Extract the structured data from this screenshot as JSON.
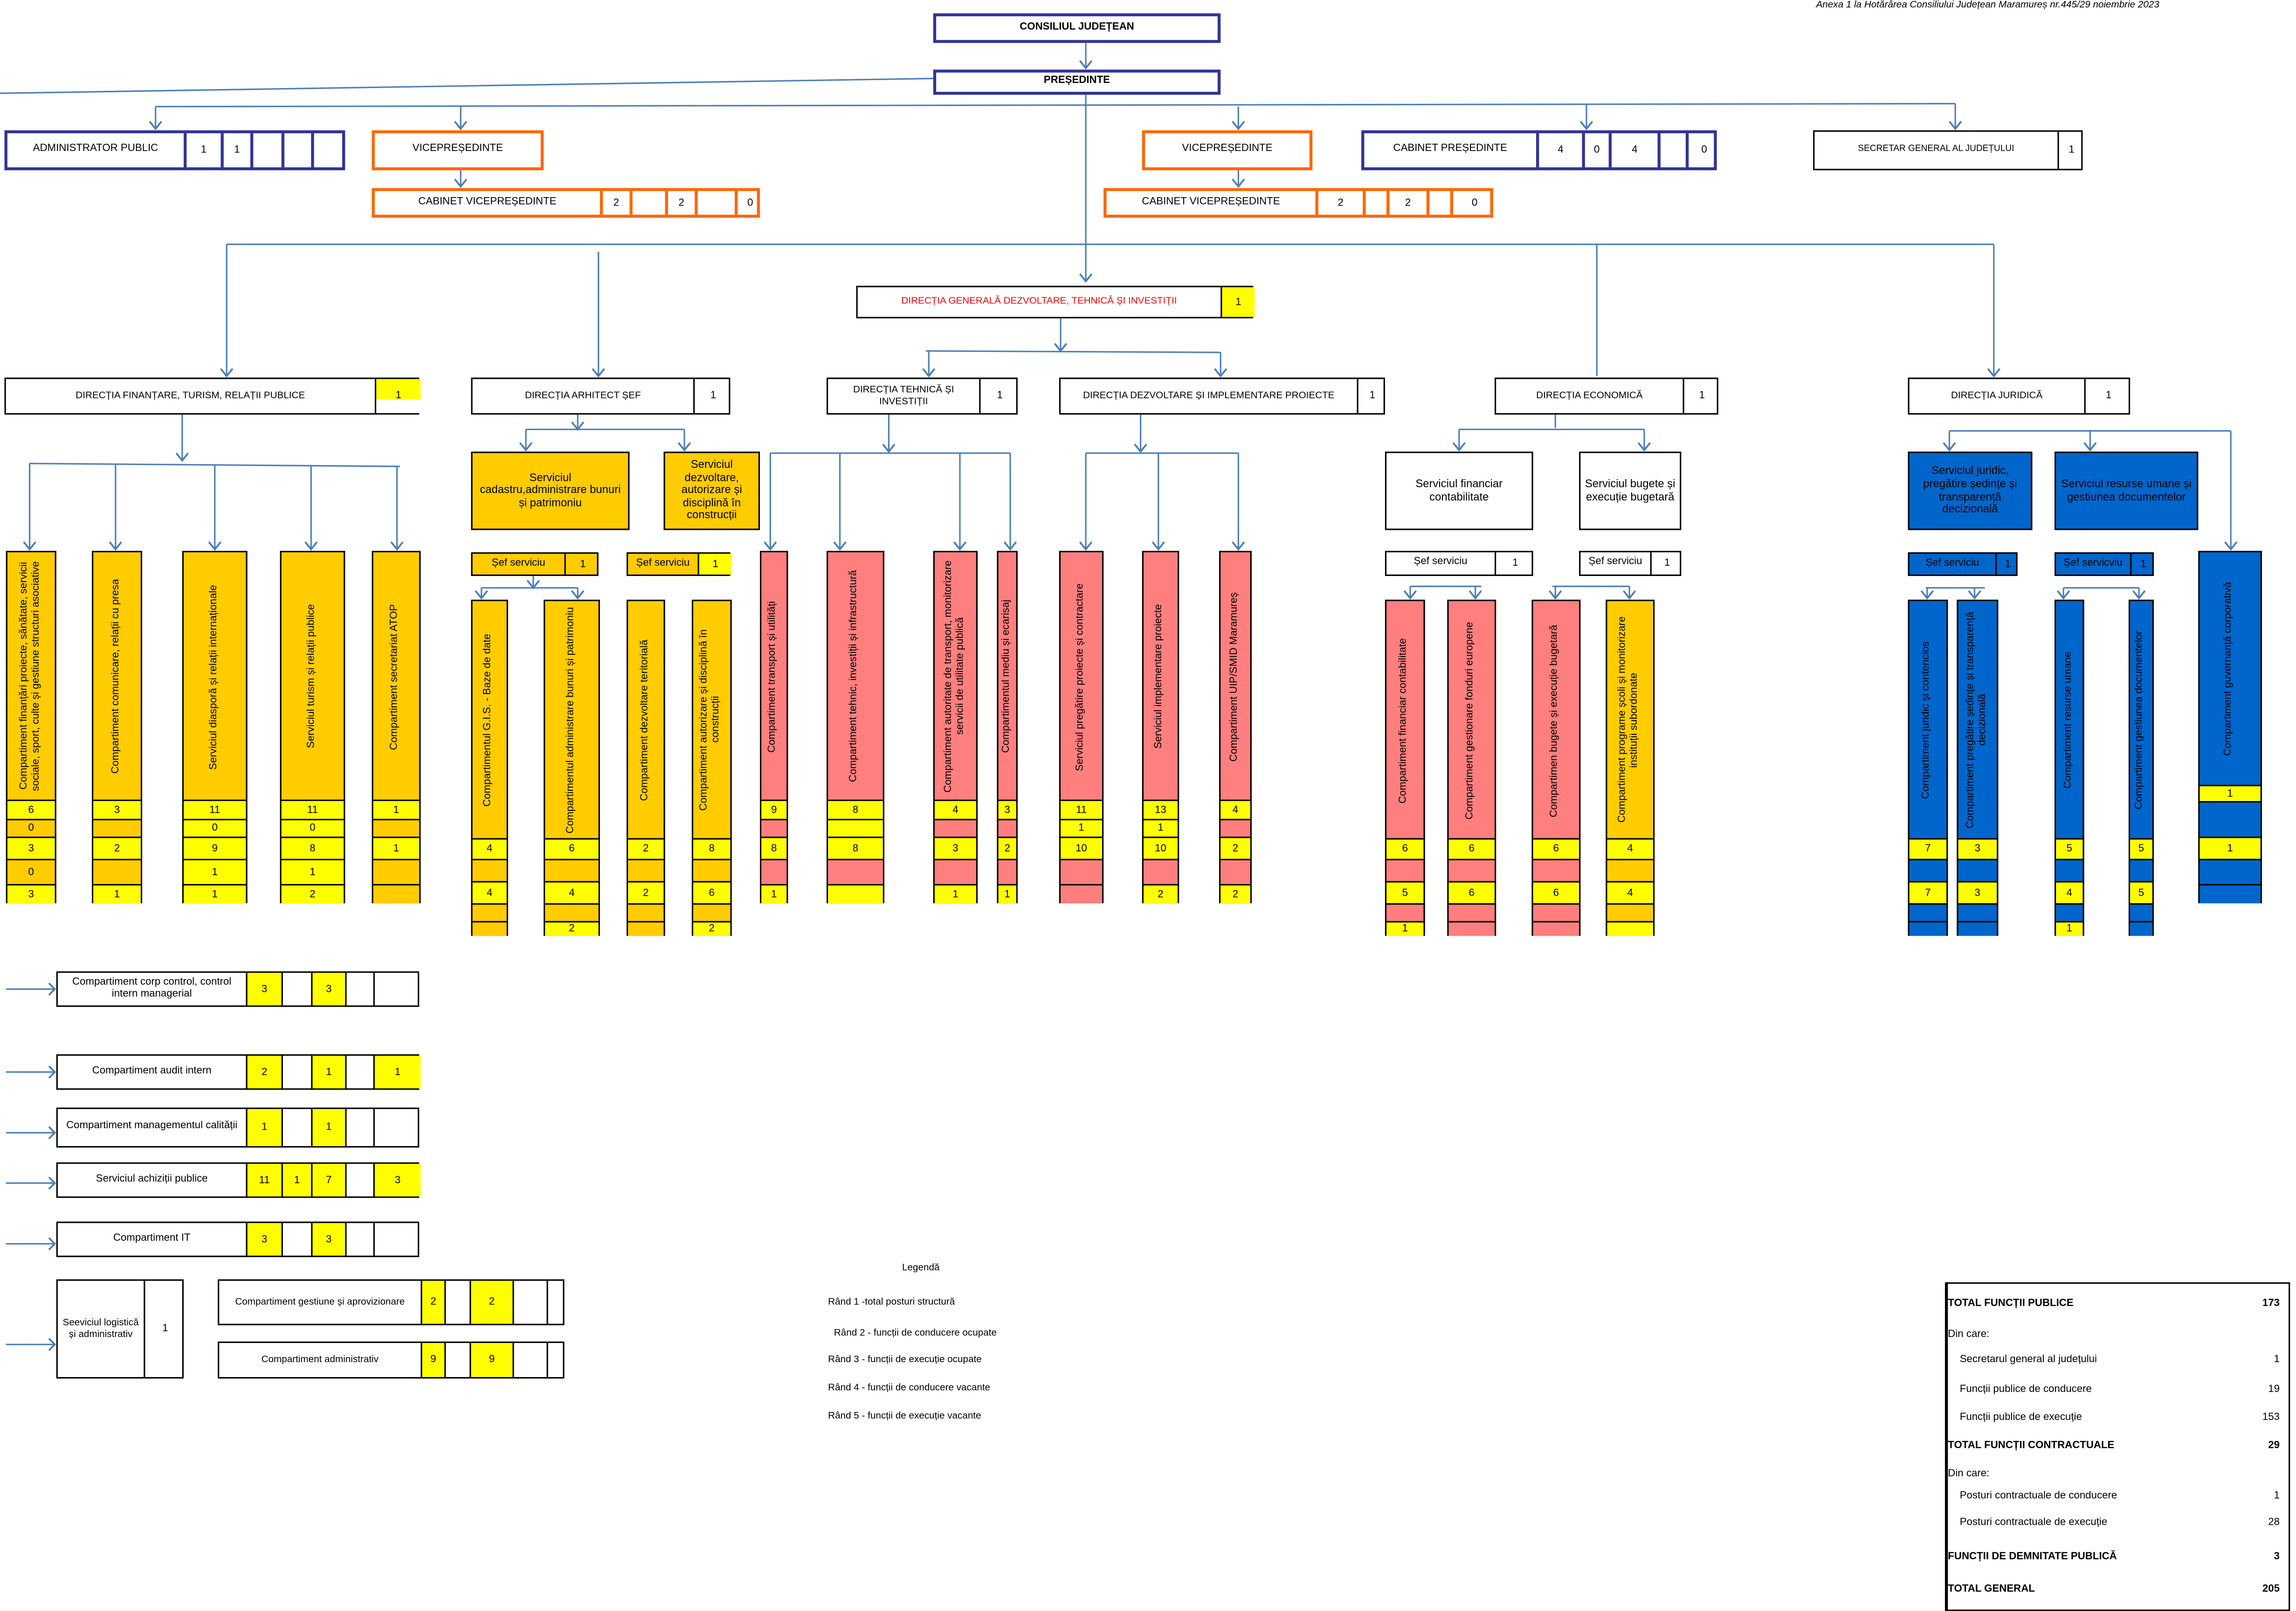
{
  "annex": "Anexa 1 la Hotărârea Consiliului Județean Maramureș nr.445/29  noiembrie 2023",
  "colors": {
    "navy": "#333399",
    "orange_border": "#ff6600",
    "orange_fill": "#ffcc00",
    "yellow": "#ffff00",
    "pink": "#ff7f7f",
    "blue": "#0066cc",
    "connector": "#4a7ebb",
    "red_text": "#ff0000"
  },
  "boxes": [
    {
      "label": "CONSILIUL JUDEȚEAN",
      "cells": [],
      "yellow": []
    },
    {
      "label": "PREȘEDINTE",
      "cells": [],
      "yellow": []
    },
    {
      "label": "ADMINISTRATOR PUBLIC",
      "cells": [
        "1",
        "1",
        "",
        "",
        ""
      ],
      "yellow": []
    },
    {
      "label": "VICEPREȘEDINTE",
      "cells": [],
      "yellow": []
    },
    {
      "label": "CABINET VICEPREȘEDINTE",
      "cells": [
        "2",
        "",
        "2",
        "",
        "0"
      ],
      "yellow": []
    },
    {
      "label": "VICEPREȘEDINTE",
      "cells": [],
      "yellow": []
    },
    {
      "label": "CABINET VICEPREȘEDINTE",
      "cells": [
        "2",
        "",
        "2",
        "",
        "0"
      ],
      "yellow": []
    },
    {
      "label": "CABINET PREȘEDINTE",
      "cells": [
        "4",
        "0",
        "4",
        "",
        "0"
      ],
      "yellow": []
    },
    {
      "label": "SECRETAR GENERAL AL JUDEȚULUI",
      "cells": [
        "1"
      ],
      "yellow": []
    },
    {
      "label": "DIRECȚIA GENERALĂ DEZVOLTARE, TEHNICĂ ȘI INVESTIȚII",
      "cells": [
        "1"
      ],
      "yellow": [
        0
      ]
    },
    {
      "label": "DIRECȚIA FINANȚARE, TURISM, RELAȚII PUBLICE",
      "cells": [
        "1"
      ],
      "yellow": [
        0
      ]
    },
    {
      "label": "DIRECȚIA ARHITECT ȘEF",
      "cells": [
        "1"
      ],
      "yellow": []
    },
    {
      "label": "DIRECȚIA TEHNICĂ ȘI INVESTIȚII",
      "cells": [
        "1"
      ],
      "yellow": []
    },
    {
      "label": "DIRECȚIA DEZVOLTARE ȘI IMPLEMENTARE PROIECTE",
      "cells": [
        "1"
      ],
      "yellow": []
    },
    {
      "label": "DIRECȚIA ECONOMICĂ",
      "cells": [
        "1"
      ],
      "yellow": []
    },
    {
      "label": "DIRECȚIA JURIDICĂ",
      "cells": [
        "1"
      ],
      "yellow": []
    },
    {
      "label": "Serviciul cadastru,administrare bunuri și patrimoniu",
      "cells": [],
      "yellow": []
    },
    {
      "label": "Serviciul dezvoltare, autorizare și disciplină în construcții",
      "cells": [],
      "yellow": []
    },
    {
      "label": "Șef serviciu",
      "cells": [
        "1"
      ],
      "yellow": []
    },
    {
      "label": "Șef serviciu",
      "cells": [
        "1"
      ],
      "yellow": [
        0
      ]
    },
    {
      "label": "Serviciul financiar contabilitate",
      "cells": [],
      "yellow": []
    },
    {
      "label": "Serviciul bugete și execuție bugetară",
      "cells": [],
      "yellow": []
    },
    {
      "label": "Șef serviciu",
      "cells": [
        "1"
      ],
      "yellow": []
    },
    {
      "label": "Șef serviciu",
      "cells": [
        "1"
      ],
      "yellow": []
    },
    {
      "label": "Serviciul juridic, pregătire ședințe și transparență decizională",
      "cells": [],
      "yellow": []
    },
    {
      "label": "Serviciul resurse umane și gestiunea documentelor",
      "cells": [],
      "yellow": []
    },
    {
      "label": "Șef serviciu",
      "cells": [
        "1"
      ],
      "yellow": []
    },
    {
      "label": "Șef servicviu",
      "cells": [
        "1"
      ],
      "yellow": []
    },
    {
      "label": "Compartiment corp control, control intern managerial",
      "cells": [
        "3",
        "",
        "3",
        "",
        ""
      ],
      "yellow": [
        0,
        2
      ]
    },
    {
      "label": "Compartiment audit intern",
      "cells": [
        "2",
        "",
        "1",
        "",
        "1"
      ],
      "yellow": [
        0,
        2,
        4
      ]
    },
    {
      "label": "Compartiment managementul calității",
      "cells": [
        "1",
        "",
        "1",
        "",
        ""
      ],
      "yellow": [
        0,
        2
      ]
    },
    {
      "label": "Serviciul achiziții publice",
      "cells": [
        "11",
        "1",
        "7",
        "",
        "3"
      ],
      "yellow": [
        0,
        1,
        2,
        4
      ]
    },
    {
      "label": "Compartiment IT",
      "cells": [
        "3",
        "",
        "3",
        "",
        ""
      ],
      "yellow": [
        0,
        2
      ]
    },
    {
      "label": "Seeviciul logistică și administrativ",
      "cells": [
        "1"
      ],
      "yellow": []
    },
    {
      "label": "Compartiment gestiune și aprovizionare",
      "cells": [
        "2",
        "",
        "2",
        "",
        ""
      ],
      "yellow": [
        0,
        2
      ]
    },
    {
      "label": "Compartiment administrativ",
      "cells": [
        "9",
        "",
        "9",
        "",
        ""
      ],
      "yellow": [
        0,
        2
      ]
    }
  ],
  "columns": [
    {
      "label": "Compartiment  finanțări proiecte,  sănătate, servicii sociale, sport, culte și gestiune structuri asociative",
      "rows": [
        "6",
        "0",
        "3",
        "0",
        "3"
      ],
      "yellow": [
        true,
        false,
        true,
        false,
        true
      ],
      "color": "#ffcc00"
    },
    {
      "label": "Compartiment comunicare, relații cu presa",
      "rows": [
        "3",
        "",
        "2",
        "",
        "1"
      ],
      "yellow": [
        true,
        false,
        true,
        false,
        true
      ],
      "color": "#ffcc00"
    },
    {
      "label": "Serviciul diasporă și relații internaționale",
      "rows": [
        "11",
        "0",
        "9",
        "1",
        "1"
      ],
      "yellow": [
        true,
        true,
        true,
        true,
        true
      ],
      "color": "#ffcc00"
    },
    {
      "label": "Serviciul turism și relații publice",
      "rows": [
        "11",
        "0",
        "8",
        "1",
        "2"
      ],
      "yellow": [
        true,
        true,
        true,
        true,
        true
      ],
      "color": "#ffcc00"
    },
    {
      "label": "Compartiment secretariat ATOP",
      "rows": [
        "1",
        "",
        "1",
        "",
        ""
      ],
      "yellow": [
        true,
        false,
        true,
        false,
        false
      ],
      "color": "#ffcc00"
    },
    {
      "label": "Compartimentul G.I.S. - Baze de date",
      "rows": [
        "4",
        "",
        "4",
        "",
        ""
      ],
      "yellow": [
        true,
        false,
        true,
        false,
        false
      ],
      "color": "#ffcc00"
    },
    {
      "label": "Compartimentul administrare bunuri și patrimoniu",
      "rows": [
        "6",
        "",
        "4",
        "",
        "2"
      ],
      "yellow": [
        true,
        false,
        true,
        false,
        true
      ],
      "color": "#ffcc00"
    },
    {
      "label": "Compartiment dezvoltare teritorială",
      "rows": [
        "2",
        "",
        "2",
        "",
        ""
      ],
      "yellow": [
        true,
        false,
        true,
        false,
        false
      ],
      "color": "#ffcc00"
    },
    {
      "label": "Compartiment autorizare și disciplină în construcții",
      "rows": [
        "8",
        "",
        "6",
        "",
        "2"
      ],
      "yellow": [
        true,
        false,
        true,
        false,
        true
      ],
      "color": "#ffcc00"
    },
    {
      "label": "Compartiment transport și utilități",
      "rows": [
        "9",
        "",
        "8",
        "",
        "1"
      ],
      "yellow": [
        true,
        false,
        true,
        false,
        true
      ],
      "color": "#ff7f7f"
    },
    {
      "label": "Compartiment tehnic, investiții și infrastructură",
      "rows": [
        "8",
        "",
        "8",
        "",
        ""
      ],
      "yellow": [
        true,
        true,
        true,
        false,
        true
      ],
      "color": "#ff7f7f"
    },
    {
      "label": "Compartiment autoritate de transport, monitorizare servicii de utilitate publică",
      "rows": [
        "4",
        "",
        "3",
        "",
        "1"
      ],
      "yellow": [
        true,
        false,
        true,
        false,
        true
      ],
      "color": "#ff7f7f"
    },
    {
      "label": "Compartimentul mediu și ecarisaj",
      "rows": [
        "3",
        "",
        "2",
        "",
        "1"
      ],
      "yellow": [
        true,
        false,
        true,
        false,
        true
      ],
      "color": "#ff7f7f"
    },
    {
      "label": "Serviciul pregătire proiecte și contractare",
      "rows": [
        "11",
        "1",
        "10",
        "",
        ""
      ],
      "yellow": [
        true,
        true,
        true,
        false,
        false
      ],
      "color": "#ff7f7f"
    },
    {
      "label": "Serviciul implementare proiecte",
      "rows": [
        "13",
        "1",
        "10",
        "",
        "2"
      ],
      "yellow": [
        true,
        true,
        true,
        false,
        true
      ],
      "color": "#ff7f7f"
    },
    {
      "label": "Compartiment UIP/SMID Maramureș",
      "rows": [
        "4",
        "",
        "2",
        "",
        "2"
      ],
      "yellow": [
        true,
        false,
        true,
        false,
        true
      ],
      "color": "#ff7f7f"
    },
    {
      "label": "Compartiment financiar contabilitate",
      "rows": [
        "6",
        "",
        "5",
        "",
        "1"
      ],
      "yellow": [
        true,
        false,
        true,
        false,
        true
      ],
      "color": "#ff7f7f"
    },
    {
      "label": "Compartiment gestionare fonduri europene",
      "rows": [
        "6",
        "",
        "6",
        "",
        ""
      ],
      "yellow": [
        true,
        false,
        true,
        false,
        false
      ],
      "color": "#ff7f7f"
    },
    {
      "label": "Compartimen bugete și execuție bugetară",
      "rows": [
        "6",
        "",
        "6",
        "",
        ""
      ],
      "yellow": [
        true,
        false,
        true,
        false,
        false
      ],
      "color": "#ff7f7f"
    },
    {
      "label": "Compartiment programe școli și monitorizare instituții subordonate",
      "rows": [
        "4",
        "",
        "4",
        "",
        ""
      ],
      "yellow": [
        true,
        false,
        true,
        false,
        true
      ],
      "color": "#ffcc00"
    },
    {
      "label": "Compartiment juridic și contencios",
      "rows": [
        "7",
        "",
        "7",
        "",
        ""
      ],
      "yellow": [
        true,
        false,
        true,
        false,
        false
      ],
      "color": "#0066cc"
    },
    {
      "label": "Compartiment pregătire ședințe și transparență decizională",
      "rows": [
        "3",
        "",
        "3",
        "",
        ""
      ],
      "yellow": [
        true,
        false,
        true,
        false,
        false
      ],
      "color": "#0066cc"
    },
    {
      "label": "Compartiment resurse umane",
      "rows": [
        "5",
        "",
        "4",
        "",
        "1"
      ],
      "yellow": [
        true,
        false,
        true,
        false,
        true
      ],
      "color": "#0066cc"
    },
    {
      "label": "Compartiment gestiunea documentelor",
      "rows": [
        "5",
        "",
        "5",
        "",
        ""
      ],
      "yellow": [
        true,
        false,
        true,
        false,
        false
      ],
      "color": "#0066cc"
    },
    {
      "label": "Compartiment guvernanță corporativă",
      "rows": [
        "1",
        "",
        "1",
        "",
        ""
      ],
      "yellow": [
        true,
        false,
        true,
        false,
        false
      ],
      "color": "#0066cc"
    }
  ],
  "legend": {
    "title": "Legendă",
    "items": [
      "Rând 1 -total posturi structură",
      "Rând 2 - funcții de conducere ocupate",
      "Rând 3 - funcții de execuție ocupate",
      "Rând 4 - funcții de conducere vacante",
      "Rând 5 - funcții de execuție vacante"
    ]
  },
  "totals": [
    {
      "label": "TOTAL FUNCȚII PUBLICE",
      "value": "173",
      "bold": true,
      "indent": false
    },
    {
      "label": "Din care:",
      "value": "",
      "bold": false,
      "indent": false
    },
    {
      "label": "Secretarul general al județului",
      "value": "1",
      "bold": false,
      "indent": true
    },
    {
      "label": "Funcții publice de conducere",
      "value": "19",
      "bold": false,
      "indent": true
    },
    {
      "label": "Funcții publice de execuție",
      "value": "153",
      "bold": false,
      "indent": true
    },
    {
      "label": "TOTAL FUNCȚII CONTRACTUALE",
      "value": "29",
      "bold": true,
      "indent": false
    },
    {
      "label": "Din care:",
      "value": "",
      "bold": false,
      "indent": false
    },
    {
      "label": "Posturi contractuale de conducere",
      "value": "1",
      "bold": false,
      "indent": true
    },
    {
      "label": "Posturi contractuale de execuție",
      "value": "28",
      "bold": false,
      "indent": true
    },
    {
      "label": "FUNCȚII DE DEMNITATE PUBLICĂ",
      "value": "3",
      "bold": true,
      "indent": false
    },
    {
      "label": "TOTAL GENERAL",
      "value": "205",
      "bold": true,
      "indent": false
    }
  ]
}
